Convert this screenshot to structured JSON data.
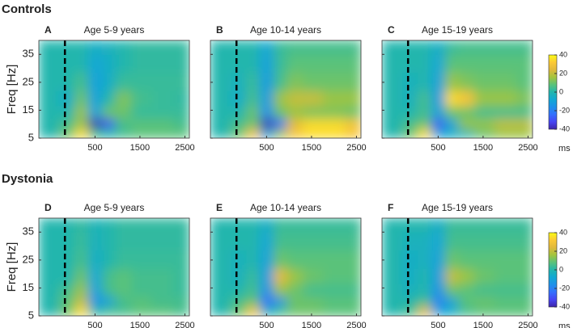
{
  "groups": [
    "Controls",
    "Dystonia"
  ],
  "chart_data": [
    {
      "type": "heatmap",
      "group": 0,
      "label": "A",
      "title": "Age 5-9 years",
      "ylabel": "Freq [Hz]",
      "ytick_labels": true,
      "x": [
        -500,
        -100,
        200,
        500,
        800,
        1100,
        1500,
        2000,
        2500
      ],
      "y": [
        7,
        10,
        14,
        19,
        25,
        32,
        38
      ],
      "z": [
        [
          0,
          10,
          35,
          5,
          0,
          5,
          8,
          8,
          8
        ],
        [
          0,
          5,
          15,
          -40,
          -30,
          5,
          8,
          8,
          5
        ],
        [
          0,
          0,
          15,
          -10,
          10,
          10,
          3,
          3,
          3
        ],
        [
          0,
          -5,
          10,
          -10,
          0,
          12,
          5,
          3,
          2
        ],
        [
          0,
          0,
          5,
          -10,
          -5,
          3,
          3,
          3,
          3
        ],
        [
          0,
          0,
          0,
          -8,
          -5,
          0,
          2,
          2,
          2
        ],
        [
          0,
          0,
          0,
          -5,
          -3,
          0,
          2,
          2,
          2
        ]
      ],
      "xlim": [
        -750,
        2600
      ],
      "ylim": [
        5,
        40
      ],
      "xticks": [
        500,
        1500,
        2500
      ],
      "yticks": [
        5,
        15,
        25,
        35
      ],
      "event_x": -170,
      "clim": [
        -40,
        40
      ]
    },
    {
      "type": "heatmap",
      "group": 0,
      "label": "B",
      "title": "Age 10-14 years",
      "ytick_labels": false,
      "x": [
        -500,
        -100,
        200,
        500,
        800,
        1100,
        1500,
        2000,
        2500
      ],
      "y": [
        7,
        10,
        14,
        19,
        25,
        32,
        38
      ],
      "z": [
        [
          0,
          10,
          30,
          -10,
          15,
          30,
          35,
          35,
          30
        ],
        [
          0,
          5,
          10,
          -40,
          -25,
          25,
          35,
          35,
          30
        ],
        [
          0,
          0,
          10,
          -15,
          10,
          15,
          12,
          12,
          10
        ],
        [
          0,
          -5,
          5,
          -12,
          15,
          20,
          20,
          15,
          15
        ],
        [
          0,
          -3,
          3,
          -12,
          5,
          12,
          10,
          10,
          10
        ],
        [
          0,
          0,
          0,
          -10,
          3,
          8,
          8,
          8,
          8
        ],
        [
          0,
          0,
          0,
          -8,
          3,
          5,
          5,
          5,
          5
        ]
      ],
      "xlim": [
        -750,
        2600
      ],
      "ylim": [
        5,
        40
      ],
      "xticks": [
        500,
        1500,
        2500
      ],
      "yticks": [
        5,
        15,
        25,
        35
      ],
      "event_x": -170,
      "clim": [
        -40,
        40
      ]
    },
    {
      "type": "heatmap",
      "group": 0,
      "label": "C",
      "title": "Age 15-19 years",
      "ytick_labels": false,
      "xlabel": "ms",
      "x": [
        -500,
        -100,
        200,
        500,
        800,
        1100,
        1500,
        2000,
        2500
      ],
      "y": [
        7,
        10,
        14,
        19,
        25,
        32,
        38
      ],
      "z": [
        [
          0,
          10,
          35,
          -10,
          -5,
          0,
          10,
          15,
          15
        ],
        [
          0,
          5,
          10,
          -30,
          -10,
          15,
          15,
          20,
          20
        ],
        [
          0,
          0,
          5,
          -10,
          10,
          10,
          5,
          5,
          5
        ],
        [
          0,
          -3,
          5,
          -12,
          35,
          30,
          15,
          15,
          12
        ],
        [
          0,
          -3,
          0,
          -10,
          15,
          12,
          10,
          10,
          8
        ],
        [
          0,
          0,
          0,
          -8,
          8,
          8,
          8,
          8,
          8
        ],
        [
          0,
          0,
          0,
          -5,
          3,
          5,
          5,
          5,
          5
        ]
      ],
      "xlim": [
        -750,
        2600
      ],
      "ylim": [
        5,
        40
      ],
      "xticks": [
        500,
        1500,
        2500
      ],
      "yticks": [
        5,
        15,
        25,
        35
      ],
      "event_x": -170,
      "clim": [
        -40,
        40
      ],
      "colorbar_ticks": [
        40,
        20,
        0,
        -20,
        -40
      ]
    },
    {
      "type": "heatmap",
      "group": 1,
      "label": "D",
      "title": "Age 5-9 years",
      "ylabel": "Freq [Hz]",
      "ytick_labels": true,
      "x": [
        -500,
        -100,
        200,
        500,
        800,
        1100,
        1500,
        2000,
        2500
      ],
      "y": [
        7,
        10,
        14,
        19,
        25,
        32,
        38
      ],
      "z": [
        [
          0,
          10,
          35,
          0,
          5,
          5,
          8,
          8,
          5
        ],
        [
          0,
          8,
          20,
          -15,
          -10,
          5,
          8,
          5,
          5
        ],
        [
          0,
          5,
          15,
          -10,
          5,
          8,
          5,
          5,
          3
        ],
        [
          0,
          0,
          10,
          -8,
          5,
          8,
          5,
          5,
          3
        ],
        [
          0,
          0,
          5,
          -5,
          0,
          3,
          3,
          3,
          3
        ],
        [
          0,
          0,
          3,
          -3,
          0,
          2,
          2,
          2,
          2
        ],
        [
          0,
          0,
          2,
          -2,
          0,
          2,
          2,
          2,
          2
        ]
      ],
      "xlim": [
        -750,
        2600
      ],
      "ylim": [
        5,
        40
      ],
      "xticks": [
        500,
        1500,
        2500
      ],
      "yticks": [
        5,
        15,
        25,
        35
      ],
      "event_x": -170,
      "clim": [
        -40,
        40
      ]
    },
    {
      "type": "heatmap",
      "group": 1,
      "label": "E",
      "title": "Age 10-14 years",
      "ytick_labels": false,
      "x": [
        -500,
        -100,
        200,
        500,
        800,
        1100,
        1500,
        2000,
        2500
      ],
      "y": [
        7,
        10,
        14,
        19,
        25,
        32,
        38
      ],
      "z": [
        [
          0,
          10,
          30,
          -5,
          5,
          10,
          10,
          8,
          8
        ],
        [
          0,
          5,
          10,
          -25,
          -15,
          10,
          10,
          8,
          8
        ],
        [
          0,
          0,
          5,
          -15,
          15,
          10,
          5,
          5,
          5
        ],
        [
          0,
          -3,
          3,
          -12,
          25,
          15,
          10,
          8,
          8
        ],
        [
          0,
          -3,
          0,
          -10,
          10,
          8,
          8,
          8,
          8
        ],
        [
          0,
          0,
          0,
          -8,
          5,
          5,
          5,
          5,
          5
        ],
        [
          0,
          0,
          0,
          -5,
          3,
          3,
          3,
          3,
          3
        ]
      ],
      "xlim": [
        -750,
        2600
      ],
      "ylim": [
        5,
        40
      ],
      "xticks": [
        500,
        1500,
        2500
      ],
      "yticks": [
        5,
        15,
        25,
        35
      ],
      "event_x": -170,
      "clim": [
        -40,
        40
      ]
    },
    {
      "type": "heatmap",
      "group": 1,
      "label": "F",
      "title": "Age 15-19 years",
      "ytick_labels": false,
      "xlabel": "ms",
      "x": [
        -500,
        -100,
        200,
        500,
        800,
        1100,
        1500,
        2000,
        2500
      ],
      "y": [
        7,
        10,
        14,
        19,
        25,
        32,
        38
      ],
      "z": [
        [
          0,
          5,
          25,
          -10,
          -5,
          5,
          8,
          8,
          8
        ],
        [
          0,
          0,
          5,
          -20,
          -10,
          8,
          10,
          8,
          8
        ],
        [
          0,
          -3,
          0,
          -15,
          10,
          8,
          5,
          5,
          5
        ],
        [
          0,
          -5,
          0,
          -12,
          20,
          15,
          10,
          8,
          8
        ],
        [
          0,
          -5,
          -3,
          -10,
          10,
          8,
          8,
          8,
          8
        ],
        [
          0,
          -3,
          -3,
          -8,
          5,
          5,
          5,
          5,
          5
        ],
        [
          0,
          0,
          0,
          -5,
          3,
          3,
          3,
          3,
          3
        ]
      ],
      "xlim": [
        -750,
        2600
      ],
      "ylim": [
        5,
        40
      ],
      "xticks": [
        500,
        1500,
        2500
      ],
      "yticks": [
        5,
        15,
        25,
        35
      ],
      "event_x": -170,
      "clim": [
        -40,
        40
      ],
      "colorbar_ticks": [
        40,
        20,
        0,
        -20,
        -40
      ]
    }
  ]
}
